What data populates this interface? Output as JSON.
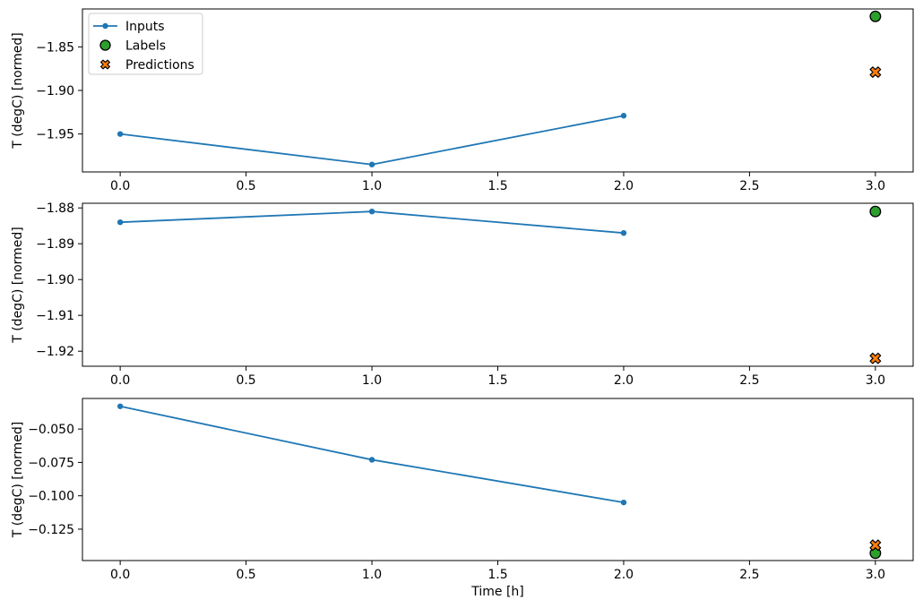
{
  "figure": {
    "xlabel": "Time [h]",
    "ylabel": "T (degC) [normed]",
    "background_color": "#ffffff",
    "spine_color": "#000000",
    "legend": {
      "position": "upper left",
      "frame_color": "#cccccc",
      "entries": [
        {
          "label": "Inputs",
          "marker": "line-dot",
          "color": "#1f77b4",
          "edge_color": "#1f77b4"
        },
        {
          "label": "Labels",
          "marker": "circle",
          "color": "#2ca02c",
          "edge_color": "#000000"
        },
        {
          "label": "Predictions",
          "marker": "x-cross",
          "color": "#ff7f0e",
          "edge_color": "#000000"
        }
      ]
    }
  },
  "chart_data": [
    {
      "type": "line",
      "panel": 1,
      "title": "",
      "xlabel": "",
      "ylabel": "T (degC) [normed]",
      "grid": false,
      "xlim": [
        -0.15,
        3.15
      ],
      "ylim": [
        -1.9935,
        -1.8065
      ],
      "xticks": {
        "values": [
          0.0,
          0.5,
          1.0,
          1.5,
          2.0,
          2.5,
          3.0
        ],
        "labels": [
          "0.0",
          "0.5",
          "1.0",
          "1.5",
          "2.0",
          "2.5",
          "3.0"
        ]
      },
      "yticks": {
        "values": [
          -1.85,
          -1.9,
          -1.95
        ],
        "labels": [
          "−1.85",
          "−1.90",
          "−1.95"
        ]
      },
      "series": [
        {
          "name": "Inputs",
          "plot": "line",
          "marker": "dot",
          "color": "#1f77b4",
          "x": [
            0,
            1,
            2
          ],
          "y": [
            -1.95,
            -1.985,
            -1.929
          ]
        },
        {
          "name": "Labels",
          "plot": "scatter",
          "marker": "circle",
          "color": "#2ca02c",
          "edge_color": "#000000",
          "x": [
            3
          ],
          "y": [
            -1.815
          ]
        },
        {
          "name": "Predictions",
          "plot": "scatter",
          "marker": "x-cross",
          "color": "#ff7f0e",
          "edge_color": "#000000",
          "x": [
            3
          ],
          "y": [
            -1.879
          ]
        }
      ]
    },
    {
      "type": "line",
      "panel": 2,
      "title": "",
      "xlabel": "",
      "ylabel": "T (degC) [normed]",
      "grid": false,
      "xlim": [
        -0.15,
        3.15
      ],
      "ylim": [
        -1.9242,
        -1.8787
      ],
      "xticks": {
        "values": [
          0.0,
          0.5,
          1.0,
          1.5,
          2.0,
          2.5,
          3.0
        ],
        "labels": [
          "0.0",
          "0.5",
          "1.0",
          "1.5",
          "2.0",
          "2.5",
          "3.0"
        ]
      },
      "yticks": {
        "values": [
          -1.88,
          -1.89,
          -1.9,
          -1.91,
          -1.92
        ],
        "labels": [
          "−1.88",
          "−1.89",
          "−1.90",
          "−1.91",
          "−1.92"
        ]
      },
      "series": [
        {
          "name": "Inputs",
          "plot": "line",
          "marker": "dot",
          "color": "#1f77b4",
          "x": [
            0,
            1,
            2
          ],
          "y": [
            -1.884,
            -1.881,
            -1.887
          ]
        },
        {
          "name": "Labels",
          "plot": "scatter",
          "marker": "circle",
          "color": "#2ca02c",
          "edge_color": "#000000",
          "x": [
            3
          ],
          "y": [
            -1.881
          ]
        },
        {
          "name": "Predictions",
          "plot": "scatter",
          "marker": "x-cross",
          "color": "#ff7f0e",
          "edge_color": "#000000",
          "x": [
            3
          ],
          "y": [
            -1.922
          ]
        }
      ]
    },
    {
      "type": "line",
      "panel": 3,
      "title": "",
      "xlabel": "Time [h]",
      "ylabel": "T (degC) [normed]",
      "grid": false,
      "xlim": [
        -0.15,
        3.15
      ],
      "ylim": [
        -0.1485,
        -0.0271
      ],
      "xticks": {
        "values": [
          0.0,
          0.5,
          1.0,
          1.5,
          2.0,
          2.5,
          3.0
        ],
        "labels": [
          "0.0",
          "0.5",
          "1.0",
          "1.5",
          "2.0",
          "2.5",
          "3.0"
        ]
      },
      "yticks": {
        "values": [
          -0.05,
          -0.075,
          -0.1,
          -0.125
        ],
        "labels": [
          "−0.050",
          "−0.075",
          "−0.100",
          "−0.125"
        ]
      },
      "series": [
        {
          "name": "Inputs",
          "plot": "line",
          "marker": "dot",
          "color": "#1f77b4",
          "x": [
            0,
            1,
            2
          ],
          "y": [
            -0.033,
            -0.073,
            -0.105
          ]
        },
        {
          "name": "Labels",
          "plot": "scatter",
          "marker": "circle",
          "color": "#2ca02c",
          "edge_color": "#000000",
          "x": [
            3
          ],
          "y": [
            -0.143
          ]
        },
        {
          "name": "Predictions",
          "plot": "scatter",
          "marker": "x-cross",
          "color": "#ff7f0e",
          "edge_color": "#000000",
          "x": [
            3
          ],
          "y": [
            -0.137
          ]
        }
      ]
    }
  ]
}
